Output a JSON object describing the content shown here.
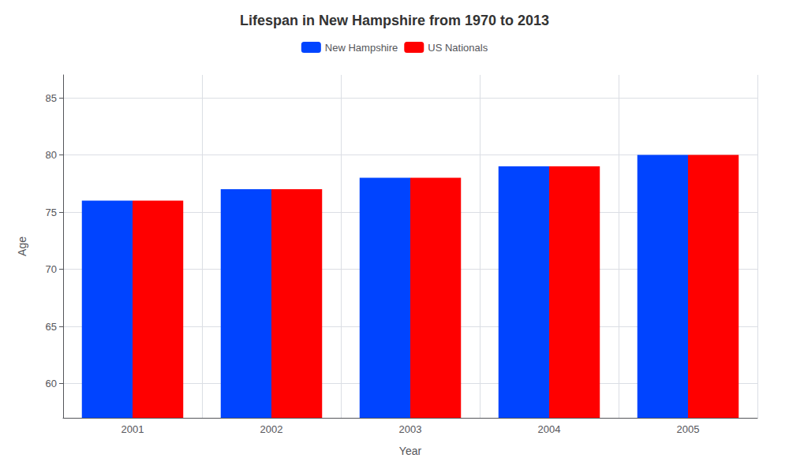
{
  "chart_data": {
    "type": "bar",
    "title": "Lifespan in New Hampshire from 1970 to 2013",
    "xlabel": "Year",
    "ylabel": "Age",
    "categories": [
      "2001",
      "2002",
      "2003",
      "2004",
      "2005"
    ],
    "series": [
      {
        "name": "New Hampshire",
        "color": "#0044ff",
        "values": [
          76,
          77,
          78,
          79,
          80
        ]
      },
      {
        "name": "US Nationals",
        "color": "#ff0000",
        "values": [
          76,
          77,
          78,
          79,
          80
        ]
      }
    ],
    "ylim": [
      57,
      87
    ],
    "yticks": [
      60,
      65,
      70,
      75,
      80,
      85
    ],
    "grid": true,
    "legend": "top"
  }
}
